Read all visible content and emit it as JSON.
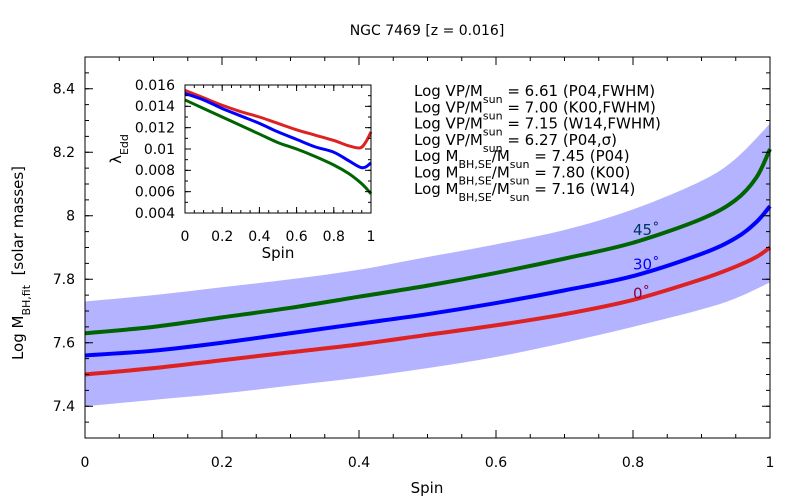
{
  "chart_data": [
    {
      "type": "area",
      "title": "NGC 7469  [z = 0.016]",
      "xlabel": "Spin",
      "ylabel_main": "Log M",
      "ylabel_sub": "BH,fit",
      "ylabel_tail": "  [solar masses]",
      "xlim": [
        0,
        1
      ],
      "ylim": [
        7.3,
        8.5
      ],
      "x_ticks": [
        0,
        0.2,
        0.4,
        0.6,
        0.8,
        1
      ],
      "x_tick_labels": [
        "0",
        "0.2",
        "0.4",
        "0.6",
        "0.8",
        "1"
      ],
      "y_ticks": [
        7.4,
        7.6,
        7.8,
        8,
        8.2,
        8.4
      ],
      "y_tick_labels": [
        "7.4",
        "7.6",
        "7.8",
        "8",
        "8.2",
        "8.4"
      ],
      "grid": false,
      "band": {
        "color": "#b3b3ff",
        "x": [
          0,
          0.1,
          0.2,
          0.3,
          0.4,
          0.5,
          0.6,
          0.7,
          0.8,
          0.9,
          0.95,
          1.0
        ],
        "lower": [
          7.4,
          7.42,
          7.44,
          7.465,
          7.49,
          7.52,
          7.555,
          7.6,
          7.65,
          7.705,
          7.74,
          7.79
        ],
        "upper": [
          7.73,
          7.75,
          7.775,
          7.8,
          7.83,
          7.87,
          7.91,
          7.955,
          8.02,
          8.11,
          8.18,
          8.29
        ]
      },
      "series": [
        {
          "name": "45˚",
          "color": "#006400",
          "label_color": "#003366",
          "label_pos": [
            0.8,
            7.94
          ],
          "x": [
            0,
            0.1,
            0.2,
            0.3,
            0.4,
            0.5,
            0.6,
            0.7,
            0.8,
            0.9,
            0.95,
            0.98,
            1.0
          ],
          "y": [
            7.63,
            7.65,
            7.68,
            7.71,
            7.745,
            7.78,
            7.82,
            7.865,
            7.915,
            7.99,
            8.05,
            8.12,
            8.21
          ]
        },
        {
          "name": "30˚",
          "color": "#0000ff",
          "label_color": "#0000ff",
          "label_pos": [
            0.8,
            7.83
          ],
          "x": [
            0,
            0.1,
            0.2,
            0.3,
            0.4,
            0.5,
            0.6,
            0.7,
            0.8,
            0.9,
            0.95,
            0.98,
            1.0
          ],
          "y": [
            7.56,
            7.575,
            7.6,
            7.63,
            7.66,
            7.69,
            7.725,
            7.765,
            7.81,
            7.88,
            7.93,
            7.98,
            8.03
          ]
        },
        {
          "name": "0˚",
          "color": "#dd2222",
          "label_color": "#8b004a",
          "label_pos": [
            0.8,
            7.74
          ],
          "x": [
            0,
            0.1,
            0.2,
            0.3,
            0.4,
            0.5,
            0.6,
            0.7,
            0.8,
            0.9,
            0.95,
            0.98,
            1.0
          ],
          "y": [
            7.5,
            7.52,
            7.545,
            7.57,
            7.595,
            7.625,
            7.655,
            7.69,
            7.735,
            7.8,
            7.84,
            7.87,
            7.9
          ]
        }
      ],
      "annotations": [
        {
          "main": "Log VP/M",
          "sub": "sun",
          "tail": " = 6.61 (P04,FWHM)"
        },
        {
          "main": "Log VP/M",
          "sub": "sun",
          "tail": " = 7.00 (K00,FWHM)"
        },
        {
          "main": "Log VP/M",
          "sub": "sun",
          "tail": " = 7.15 (W14,FWHM)"
        },
        {
          "main": "Log VP/M",
          "sub": "sun",
          "tail": " = 6.27 (P04,σ)"
        },
        {
          "main": "Log M",
          "sub": "BH,SE",
          "mid": "/M",
          "sub2": "sun",
          "tail": " = 7.45 (P04)"
        },
        {
          "main": "Log M",
          "sub": "BH,SE",
          "mid": "/M",
          "sub2": "sun",
          "tail": " = 7.80 (K00)"
        },
        {
          "main": "Log M",
          "sub": "BH,SE",
          "mid": "/M",
          "sub2": "sun",
          "tail": " = 7.16 (W14)"
        }
      ]
    },
    {
      "type": "line",
      "title": "",
      "xlabel": "Spin",
      "ylabel_main": "λ",
      "ylabel_sub": "Edd",
      "xlim": [
        0,
        1
      ],
      "ylim": [
        0.004,
        0.016
      ],
      "x_ticks": [
        0,
        0.2,
        0.4,
        0.6,
        0.8,
        1
      ],
      "x_tick_labels": [
        "0",
        "0.2",
        "0.4",
        "0.6",
        "0.8",
        "1"
      ],
      "y_ticks": [
        0.004,
        0.006,
        0.008,
        0.01,
        0.012,
        0.014,
        0.016
      ],
      "y_tick_labels": [
        "0.004",
        "0.006",
        "0.008",
        "0.01",
        "0.012",
        "0.014",
        "0.016"
      ],
      "grid": false,
      "series": [
        {
          "color": "#dd2222",
          "x": [
            0,
            0.1,
            0.2,
            0.3,
            0.4,
            0.5,
            0.6,
            0.7,
            0.8,
            0.88,
            0.94,
            0.97,
            1.0
          ],
          "y": [
            0.0155,
            0.0148,
            0.0141,
            0.0135,
            0.013,
            0.0124,
            0.0118,
            0.0113,
            0.0108,
            0.0103,
            0.0101,
            0.0106,
            0.0116
          ]
        },
        {
          "color": "#0000ff",
          "x": [
            0,
            0.1,
            0.2,
            0.3,
            0.4,
            0.5,
            0.6,
            0.7,
            0.8,
            0.88,
            0.94,
            0.97,
            1.0
          ],
          "y": [
            0.0152,
            0.0146,
            0.0138,
            0.0131,
            0.0124,
            0.0116,
            0.0109,
            0.0102,
            0.0097,
            0.0089,
            0.0083,
            0.0083,
            0.0087
          ]
        },
        {
          "color": "#006400",
          "x": [
            0,
            0.1,
            0.2,
            0.3,
            0.4,
            0.5,
            0.6,
            0.7,
            0.8,
            0.88,
            0.94,
            0.97,
            1.0
          ],
          "y": [
            0.0146,
            0.0138,
            0.013,
            0.0122,
            0.0114,
            0.0106,
            0.01,
            0.0093,
            0.0085,
            0.0077,
            0.0069,
            0.0064,
            0.0058
          ]
        }
      ]
    }
  ]
}
